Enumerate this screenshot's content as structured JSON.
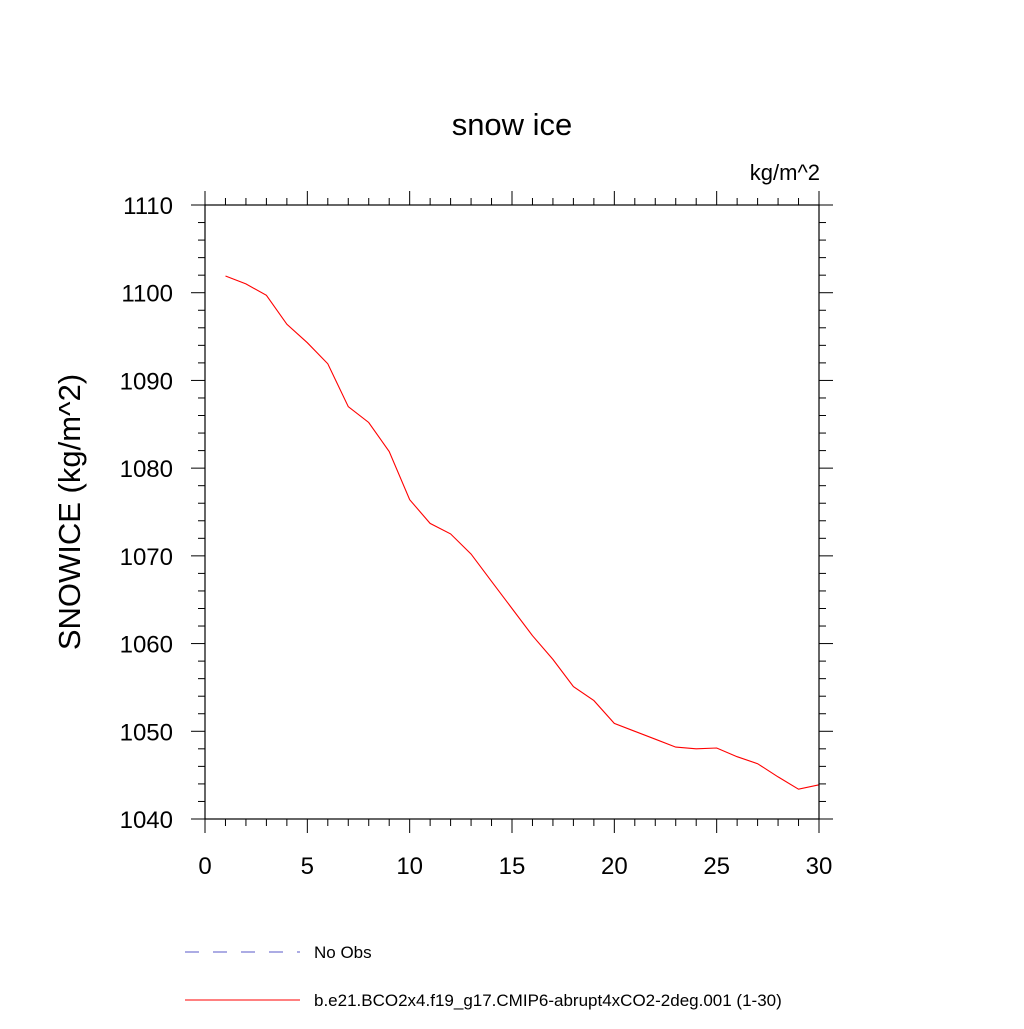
{
  "chart_data": {
    "type": "line",
    "title": "snow ice",
    "units_label": "kg/m^2",
    "ylabel": "SNOWICE  (kg/m^2)",
    "xlabel": "",
    "xlim": [
      0,
      30
    ],
    "ylim": [
      1040,
      1110
    ],
    "xticks": [
      0,
      5,
      10,
      15,
      20,
      25,
      30
    ],
    "yticks": [
      1040,
      1050,
      1060,
      1070,
      1080,
      1090,
      1100,
      1110
    ],
    "grid": false,
    "legend_position": "bottom",
    "series": [
      {
        "name": "b.e21.BCO2x4.f19_g17.CMIP6-abrupt4xCO2-2deg.001 (1-30)",
        "color": "#ff0000",
        "style": "solid",
        "x": [
          1,
          2,
          3,
          4,
          5,
          6,
          7,
          8,
          9,
          10,
          11,
          12,
          13,
          14,
          15,
          16,
          17,
          18,
          19,
          20,
          21,
          22,
          23,
          24,
          25,
          26,
          27,
          28,
          29,
          30
        ],
        "values": [
          1101.9,
          1101.0,
          1099.7,
          1096.4,
          1094.3,
          1091.9,
          1087.0,
          1085.2,
          1081.9,
          1076.4,
          1073.7,
          1072.5,
          1070.2,
          1067.1,
          1064.0,
          1060.9,
          1058.2,
          1055.1,
          1053.5,
          1050.9,
          1050.0,
          1049.1,
          1048.2,
          1048.0,
          1048.1,
          1047.1,
          1046.3,
          1044.8,
          1043.4,
          1043.9
        ]
      }
    ],
    "legend": [
      {
        "label": "No Obs",
        "color": "#5a5ac8",
        "style": "dashed"
      },
      {
        "label": "b.e21.BCO2x4.f19_g17.CMIP6-abrupt4xCO2-2deg.001 (1-30)",
        "color": "#ff0000",
        "style": "solid"
      }
    ]
  }
}
